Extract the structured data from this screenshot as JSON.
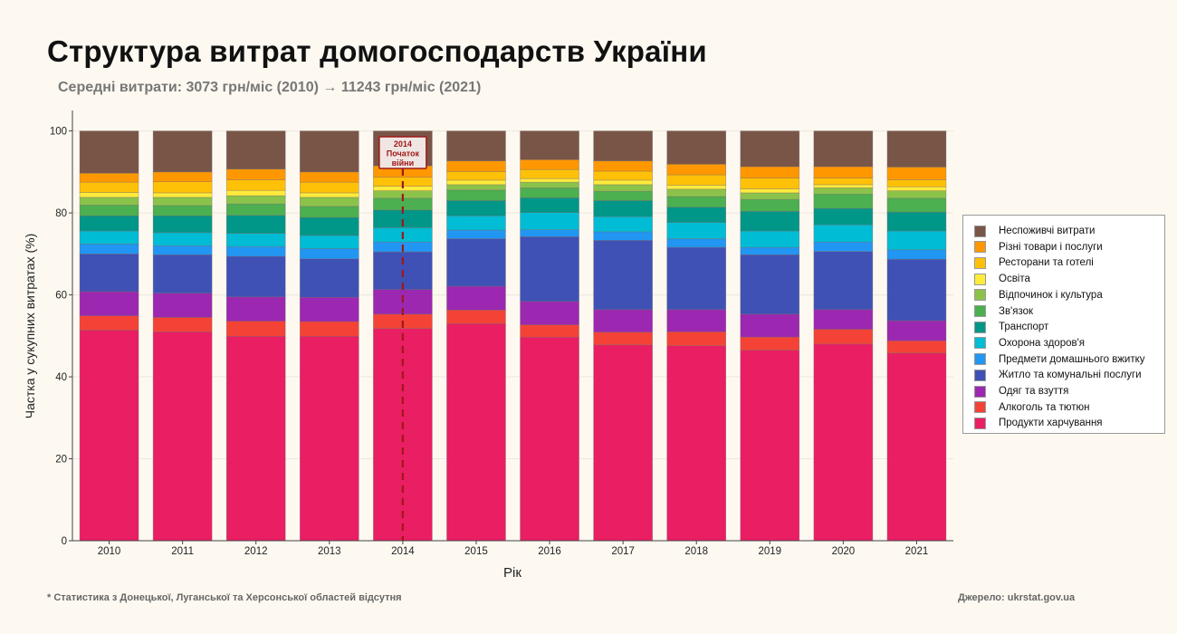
{
  "header": {
    "title": "Структура витрат домогосподарств України",
    "subtitle": "Середні витрати: 3073 грн/міс (2010) → 11243 грн/міс (2021)"
  },
  "footer": {
    "note": "* Статистика з Донецької, Луганської та Херсонської областей відсутня",
    "source": "Джерело: ukrstat.gov.ua"
  },
  "chart_data": {
    "type": "bar",
    "stacked": true,
    "xlabel": "Рік",
    "ylabel": "Частка у сукупних витратах (%)",
    "ylim": [
      0,
      105
    ],
    "yticks": [
      0,
      20,
      40,
      60,
      80,
      100
    ],
    "grid": true,
    "legend_position": "right",
    "categories": [
      "2010",
      "2011",
      "2012",
      "2013",
      "2014",
      "2015",
      "2016",
      "2017",
      "2018",
      "2019",
      "2020",
      "2021"
    ],
    "annotation": {
      "category": "2014",
      "lines": [
        "2014",
        "Початок",
        "війни"
      ],
      "color": "#a01818"
    },
    "series": [
      {
        "name": "Продукти харчування",
        "color": "#E91E63",
        "values": [
          51.4,
          51.0,
          49.9,
          49.9,
          51.8,
          53.0,
          49.7,
          47.8,
          47.6,
          46.5,
          48.0,
          45.8
        ]
      },
      {
        "name": "Алкоголь та тютюн",
        "color": "#F44336",
        "values": [
          3.5,
          3.5,
          3.7,
          3.6,
          3.5,
          3.3,
          3.0,
          3.1,
          3.4,
          3.2,
          3.6,
          3.0
        ]
      },
      {
        "name": "Одяг та взуття",
        "color": "#9C27B0",
        "values": [
          5.9,
          5.9,
          5.9,
          5.9,
          6.0,
          5.8,
          5.7,
          5.5,
          5.4,
          5.6,
          4.8,
          4.9
        ]
      },
      {
        "name": "Житло та комунальні послуги",
        "color": "#3F51B5",
        "values": [
          9.2,
          9.4,
          9.9,
          9.4,
          9.2,
          11.6,
          15.8,
          16.9,
          15.2,
          14.5,
          14.2,
          15.0
        ]
      },
      {
        "name": "Предмети домашнього вжитку",
        "color": "#2196F3",
        "values": [
          2.4,
          2.2,
          2.4,
          2.5,
          2.4,
          2.1,
          1.7,
          2.1,
          2.1,
          1.8,
          2.3,
          2.3
        ]
      },
      {
        "name": "Охорона здоров'я",
        "color": "#00BCD4",
        "values": [
          3.2,
          3.2,
          3.2,
          3.2,
          3.5,
          3.5,
          4.2,
          3.7,
          4.0,
          4.0,
          4.2,
          4.6
        ]
      },
      {
        "name": "Транспорт",
        "color": "#009688",
        "values": [
          3.7,
          4.1,
          4.4,
          4.4,
          4.3,
          3.7,
          3.6,
          3.9,
          3.7,
          4.8,
          4.0,
          4.6
        ]
      },
      {
        "name": "Зв'язок",
        "color": "#4CAF50",
        "values": [
          2.6,
          2.5,
          2.8,
          2.7,
          2.9,
          2.6,
          2.4,
          2.3,
          2.6,
          2.9,
          3.5,
          3.4
        ]
      },
      {
        "name": "Відпочинок і культура",
        "color": "#8BC34A",
        "values": [
          1.9,
          2.0,
          2.0,
          2.2,
          1.8,
          1.3,
          1.4,
          1.6,
          1.8,
          1.6,
          1.5,
          1.8
        ]
      },
      {
        "name": "Освіта",
        "color": "#FFEB3B",
        "values": [
          1.2,
          1.1,
          1.3,
          1.1,
          1.1,
          1.1,
          0.9,
          1.1,
          1.0,
          1.0,
          0.8,
          1.0
        ]
      },
      {
        "name": "Ресторани та готелі",
        "color": "#FFC107",
        "values": [
          2.5,
          2.7,
          2.6,
          2.6,
          2.2,
          2.1,
          2.2,
          2.2,
          2.5,
          2.6,
          1.6,
          1.7
        ]
      },
      {
        "name": "Різні товари і послуги",
        "color": "#FF9800",
        "values": [
          2.2,
          2.4,
          2.6,
          2.5,
          2.8,
          2.6,
          2.4,
          2.5,
          2.6,
          2.8,
          2.8,
          3.1
        ]
      },
      {
        "name": "Неспоживчі витрати",
        "color": "#795548",
        "values": [
          10.3,
          10.0,
          9.3,
          10.0,
          8.5,
          7.3,
          7.0,
          7.3,
          8.1,
          8.7,
          8.7,
          8.8
        ]
      }
    ]
  }
}
